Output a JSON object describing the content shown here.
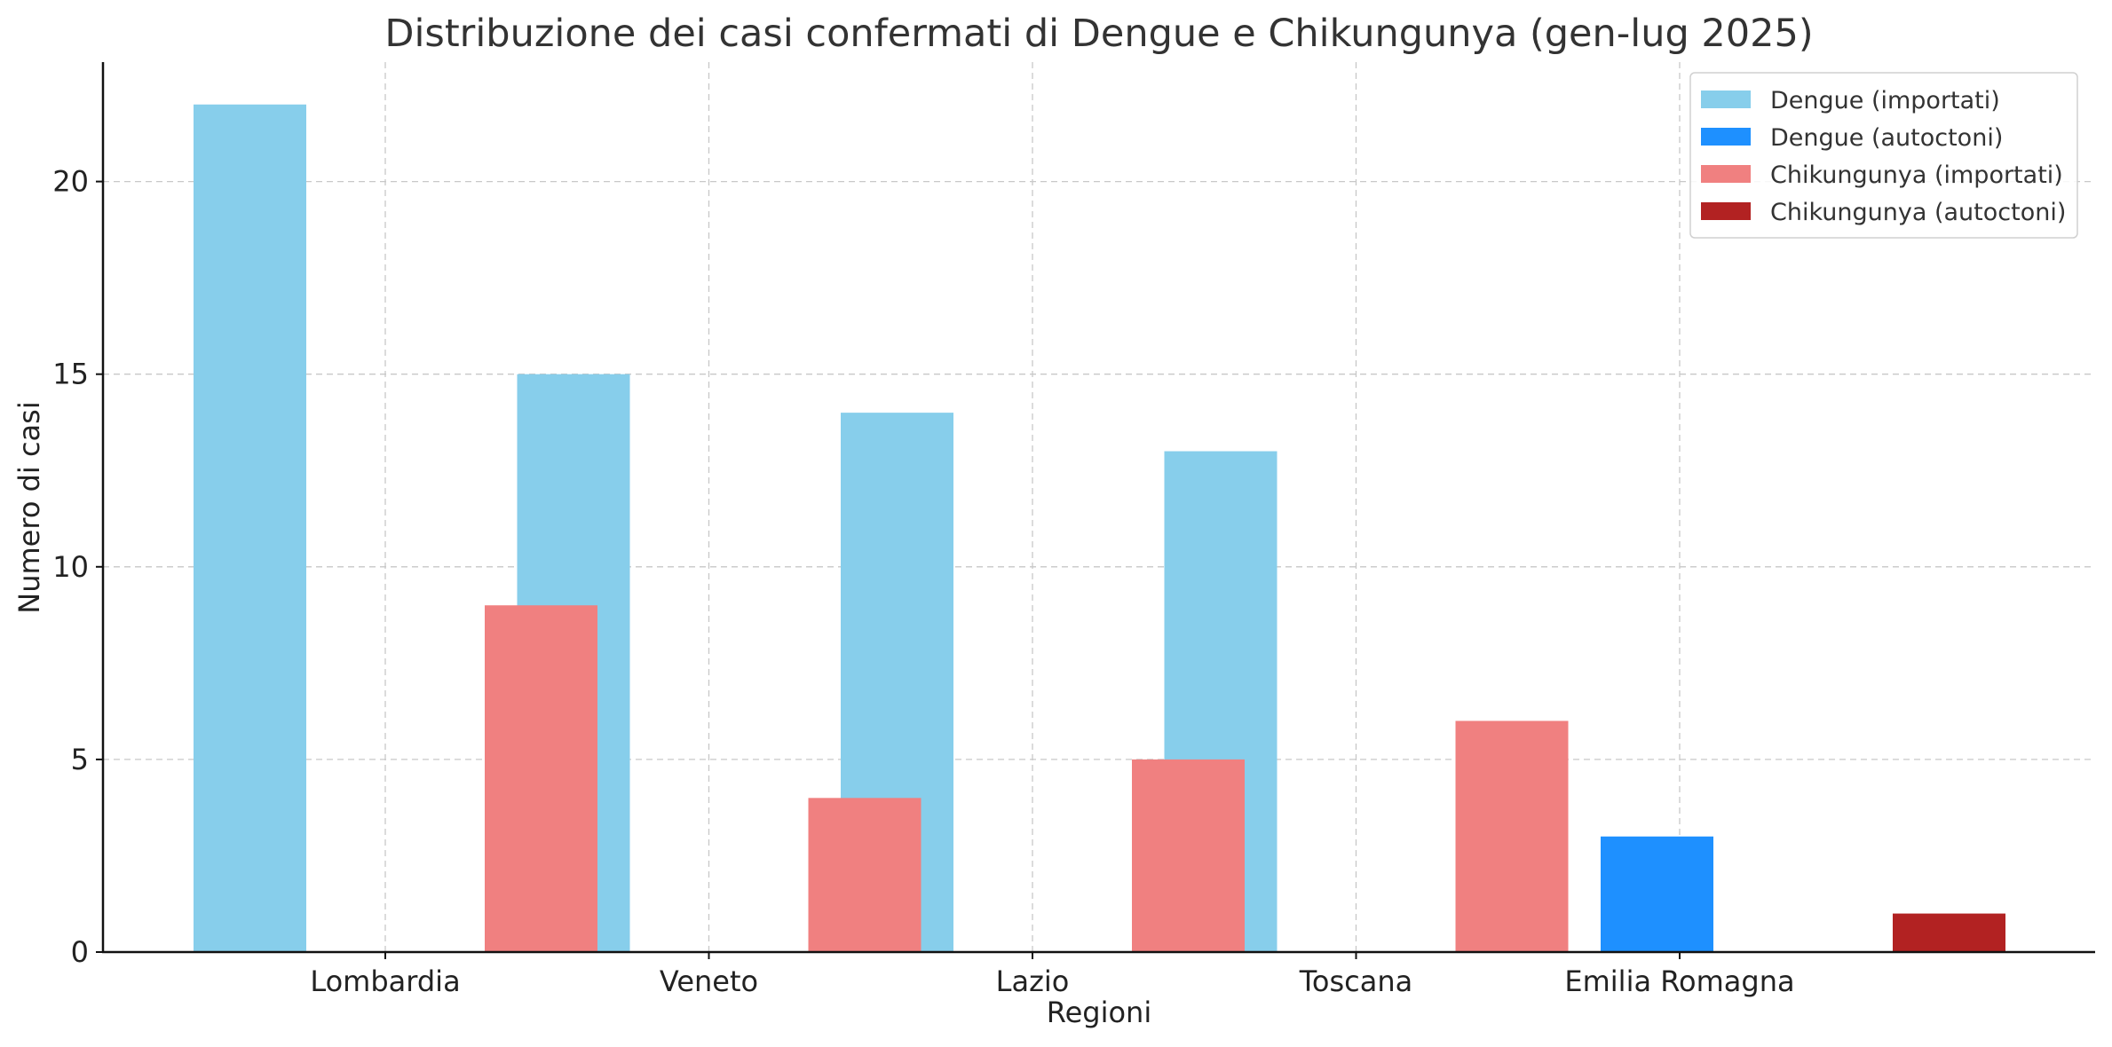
{
  "chart_data": {
    "type": "bar",
    "title": "Distribuzione dei casi confermati di Dengue e Chikungunya (gen-lug 2025)",
    "xlabel": "Regioni",
    "ylabel": "Numero di casi",
    "categories": [
      "Lombardia",
      "Veneto",
      "Lazio",
      "Toscana",
      "Emilia Romagna"
    ],
    "ylim": [
      0,
      23.1
    ],
    "yticks": [
      0,
      5,
      10,
      15,
      20
    ],
    "grid": true,
    "legend_position": "top-right",
    "series": [
      {
        "name": "Dengue (importati)",
        "color": "#87CEEB",
        "values": [
          22,
          15,
          14,
          13,
          0
        ]
      },
      {
        "name": "Dengue (autoctoni)",
        "color": "#1E90FF",
        "values": [
          0,
          0,
          0,
          0,
          3
        ]
      },
      {
        "name": "Chikungunya (importati)",
        "color": "#F08080",
        "values": [
          9,
          4,
          5,
          6,
          0
        ]
      },
      {
        "name": "Chikungunya (autoctoni)",
        "color": "#B22222",
        "values": [
          0,
          0,
          0,
          0,
          1
        ]
      }
    ]
  }
}
